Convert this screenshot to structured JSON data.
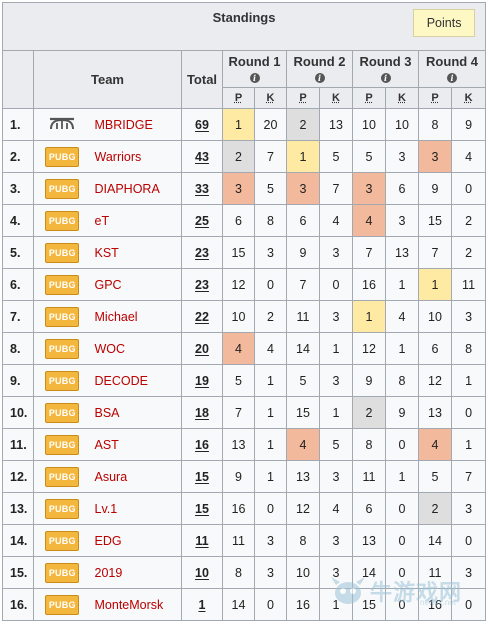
{
  "title": "Standings",
  "points_button": "Points",
  "headers": {
    "team": "Team",
    "total": "Total",
    "rounds": [
      "Round 1",
      "Round 2",
      "Round 3",
      "Round 4"
    ],
    "info_glyph": "i",
    "p": "P",
    "k": "K"
  },
  "rows": [
    {
      "rank": "1.",
      "logo": "mbridge",
      "team": "MBRIDGE",
      "total": "69",
      "r": [
        [
          "1",
          "20"
        ],
        [
          "2",
          "13"
        ],
        [
          "10",
          "10"
        ],
        [
          "8",
          "9"
        ]
      ],
      "hl": [
        "gold",
        "silver",
        "",
        ""
      ]
    },
    {
      "rank": "2.",
      "logo": "pubg",
      "team": "Warriors",
      "total": "43",
      "r": [
        [
          "2",
          "7"
        ],
        [
          "1",
          "5"
        ],
        [
          "5",
          "3"
        ],
        [
          "3",
          "4"
        ]
      ],
      "hl": [
        "silver",
        "gold",
        "",
        "bronze"
      ]
    },
    {
      "rank": "3.",
      "logo": "pubg",
      "team": "DIAPHORA",
      "total": "33",
      "r": [
        [
          "3",
          "5"
        ],
        [
          "3",
          "7"
        ],
        [
          "3",
          "6"
        ],
        [
          "9",
          "0"
        ]
      ],
      "hl": [
        "bronze",
        "bronze",
        "bronze",
        ""
      ]
    },
    {
      "rank": "4.",
      "logo": "pubg",
      "team": "eT",
      "total": "25",
      "r": [
        [
          "6",
          "8"
        ],
        [
          "6",
          "4"
        ],
        [
          "4",
          "3"
        ],
        [
          "15",
          "2"
        ]
      ],
      "hl": [
        "",
        "",
        "bronze",
        ""
      ]
    },
    {
      "rank": "5.",
      "logo": "pubg",
      "team": "KST",
      "total": "23",
      "r": [
        [
          "15",
          "3"
        ],
        [
          "9",
          "3"
        ],
        [
          "7",
          "13"
        ],
        [
          "7",
          "2"
        ]
      ],
      "hl": [
        "",
        "",
        "",
        ""
      ]
    },
    {
      "rank": "6.",
      "logo": "pubg",
      "team": "GPC",
      "total": "23",
      "r": [
        [
          "12",
          "0"
        ],
        [
          "7",
          "0"
        ],
        [
          "16",
          "1"
        ],
        [
          "1",
          "11"
        ]
      ],
      "hl": [
        "",
        "",
        "",
        "gold"
      ]
    },
    {
      "rank": "7.",
      "logo": "pubg",
      "team": "Michael",
      "total": "22",
      "r": [
        [
          "10",
          "2"
        ],
        [
          "11",
          "3"
        ],
        [
          "1",
          "4"
        ],
        [
          "10",
          "3"
        ]
      ],
      "hl": [
        "",
        "",
        "gold",
        ""
      ]
    },
    {
      "rank": "8.",
      "logo": "pubg",
      "team": "WOC",
      "total": "20",
      "r": [
        [
          "4",
          "4"
        ],
        [
          "14",
          "1"
        ],
        [
          "12",
          "1"
        ],
        [
          "6",
          "8"
        ]
      ],
      "hl": [
        "bronze",
        "",
        "",
        ""
      ]
    },
    {
      "rank": "9.",
      "logo": "pubg",
      "team": "DECODE",
      "total": "19",
      "r": [
        [
          "5",
          "1"
        ],
        [
          "5",
          "3"
        ],
        [
          "9",
          "8"
        ],
        [
          "12",
          "1"
        ]
      ],
      "hl": [
        "",
        "",
        "",
        ""
      ]
    },
    {
      "rank": "10.",
      "logo": "pubg",
      "team": "BSA",
      "total": "18",
      "r": [
        [
          "7",
          "1"
        ],
        [
          "15",
          "1"
        ],
        [
          "2",
          "9"
        ],
        [
          "13",
          "0"
        ]
      ],
      "hl": [
        "",
        "",
        "silver",
        ""
      ]
    },
    {
      "rank": "11.",
      "logo": "pubg",
      "team": "AST",
      "total": "16",
      "r": [
        [
          "13",
          "1"
        ],
        [
          "4",
          "5"
        ],
        [
          "8",
          "0"
        ],
        [
          "4",
          "1"
        ]
      ],
      "hl": [
        "",
        "bronze",
        "",
        "bronze"
      ]
    },
    {
      "rank": "12.",
      "logo": "pubg",
      "team": "Asura",
      "total": "15",
      "r": [
        [
          "9",
          "1"
        ],
        [
          "13",
          "3"
        ],
        [
          "11",
          "1"
        ],
        [
          "5",
          "7"
        ]
      ],
      "hl": [
        "",
        "",
        "",
        ""
      ]
    },
    {
      "rank": "13.",
      "logo": "pubg",
      "team": "Lv.1",
      "total": "15",
      "r": [
        [
          "16",
          "0"
        ],
        [
          "12",
          "4"
        ],
        [
          "6",
          "0"
        ],
        [
          "2",
          "3"
        ]
      ],
      "hl": [
        "",
        "",
        "",
        "silver"
      ]
    },
    {
      "rank": "14.",
      "logo": "pubg",
      "team": "EDG",
      "total": "11",
      "r": [
        [
          "11",
          "3"
        ],
        [
          "8",
          "3"
        ],
        [
          "13",
          "0"
        ],
        [
          "14",
          "0"
        ]
      ],
      "hl": [
        "",
        "",
        "",
        ""
      ]
    },
    {
      "rank": "15.",
      "logo": "pubg",
      "team": "2019",
      "total": "10",
      "r": [
        [
          "8",
          "3"
        ],
        [
          "10",
          "3"
        ],
        [
          "14",
          "0"
        ],
        [
          "11",
          "3"
        ]
      ],
      "hl": [
        "",
        "",
        "",
        ""
      ]
    },
    {
      "rank": "16.",
      "logo": "pubg",
      "team": "MonteMorsk",
      "total": "1",
      "r": [
        [
          "14",
          "0"
        ],
        [
          "16",
          "1"
        ],
        [
          "15",
          "0"
        ],
        [
          "16",
          "0"
        ]
      ],
      "hl": [
        "",
        "",
        "",
        ""
      ]
    }
  ],
  "logo_text": "PUBG",
  "watermark": {
    "text": "牛游戏网",
    "sub": "newyx.net"
  },
  "colors": {
    "gold": "#ffeaa3",
    "silver": "#dedede",
    "bronze": "#f2b99c",
    "team_link": "#ba0000",
    "header_bg": "#eaecf0",
    "row_bg": "#f8f9fa",
    "points_bg": "#fef8c5"
  }
}
